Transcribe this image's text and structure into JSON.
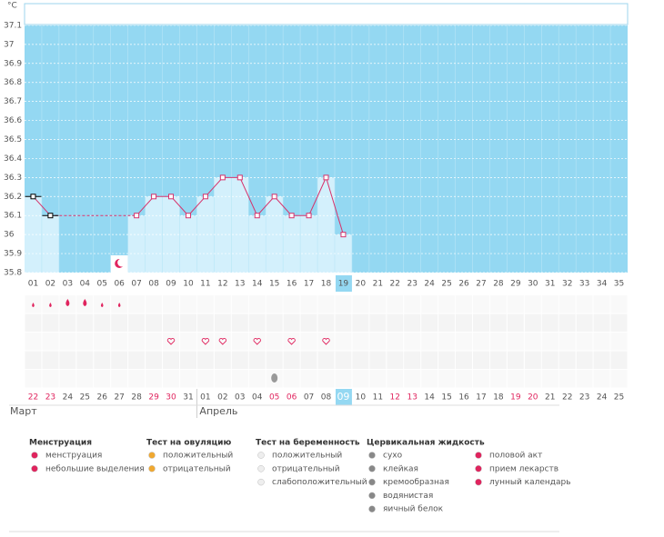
{
  "chart_data": {
    "type": "line",
    "y_label": "°C",
    "categories": [
      "01",
      "02",
      "03",
      "04",
      "05",
      "06",
      "07",
      "08",
      "09",
      "10",
      "11",
      "12",
      "13",
      "14",
      "15",
      "16",
      "17",
      "18",
      "19",
      "20",
      "21",
      "22",
      "23",
      "24",
      "25",
      "26",
      "27",
      "28",
      "29",
      "30",
      "31",
      "32",
      "33",
      "34",
      "35"
    ],
    "values": [
      36.2,
      36.1,
      null,
      null,
      null,
      null,
      36.1,
      36.2,
      36.2,
      36.1,
      36.2,
      36.3,
      36.3,
      36.1,
      36.2,
      36.1,
      36.1,
      36.3,
      36.0,
      null,
      null,
      null,
      null,
      null,
      null,
      null,
      null,
      null,
      null,
      null,
      null,
      null,
      null,
      null,
      null
    ],
    "color": "#d6336c",
    "background": "#94d8f2",
    "bar_color": "#d3f0fc",
    "ylim": [
      35.8,
      37.2
    ],
    "yticks": [
      35.8,
      35.9,
      36,
      36.1,
      36.2,
      36.3,
      36.4,
      36.5,
      36.6,
      36.7,
      36.8,
      36.9,
      37,
      37.1
    ],
    "grid": true
  },
  "calendar": {
    "dates": [
      "22",
      "23",
      "24",
      "25",
      "26",
      "27",
      "28",
      "29",
      "30",
      "31",
      "01",
      "02",
      "03",
      "04",
      "05",
      "06",
      "07",
      "08",
      "09",
      "10",
      "11",
      "12",
      "13",
      "14",
      "15",
      "16",
      "17",
      "18",
      "19",
      "20",
      "21",
      "22",
      "23",
      "24",
      "25"
    ],
    "months": [
      "Март",
      "Апрель"
    ]
  },
  "legend": [
    {
      "title": "Менструация",
      "items": [
        "менструация",
        "небольшие выделения"
      ]
    },
    {
      "title": "Тест на овуляцию",
      "items": [
        "положительный",
        "отрицательный"
      ]
    },
    {
      "title": "Тест на беременность",
      "items": [
        "положительный",
        "отрицательный",
        "слабоположительный"
      ]
    },
    {
      "title": "Цервикальная жидкость",
      "items": [
        "сухо",
        "клейкая",
        "кремообразная",
        "водянистая",
        "яичный белок"
      ]
    },
    {
      "items": [
        "половой акт",
        "прием лекарств",
        "лунный календарь"
      ]
    }
  ]
}
